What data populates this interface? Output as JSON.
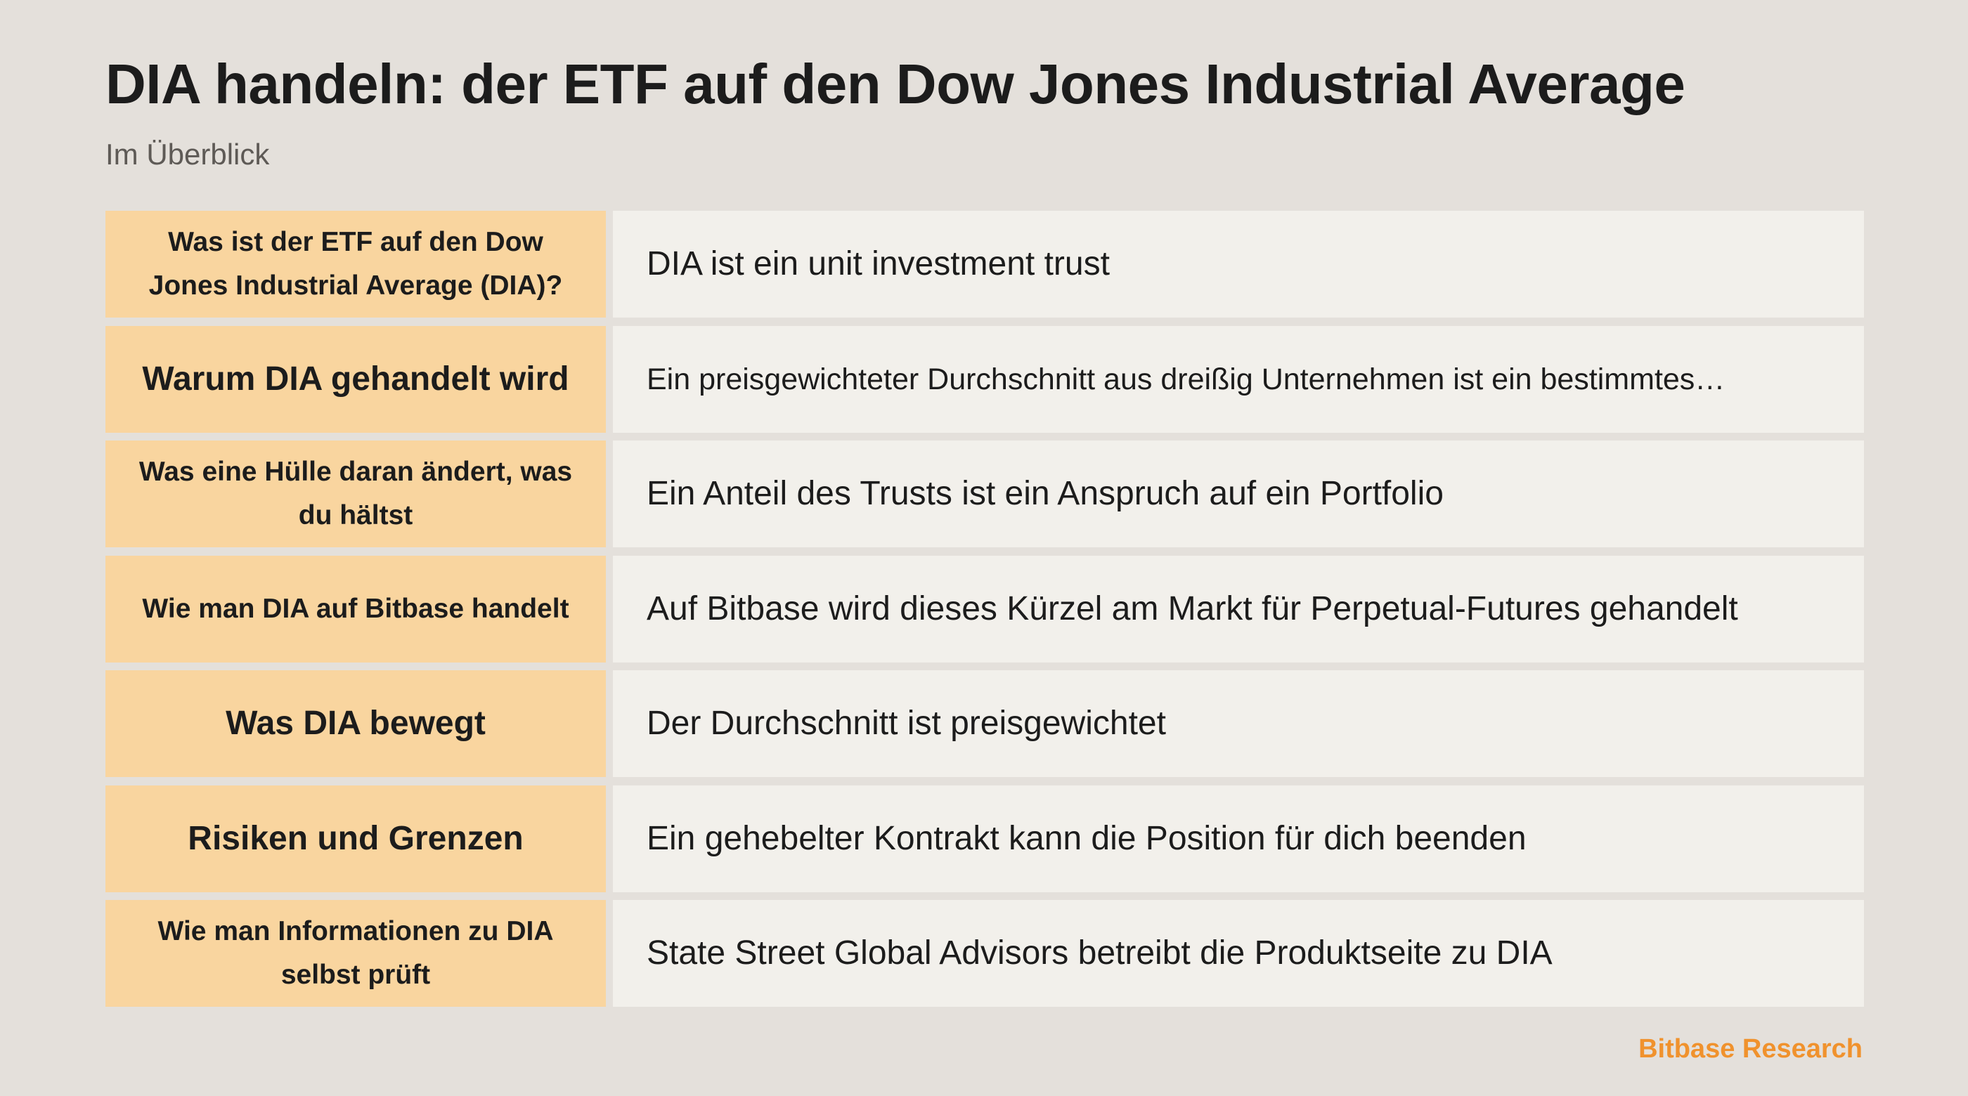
{
  "title": "DIA handeln: der ETF auf den Dow Jones Industrial Average",
  "subtitle": "Im Überblick",
  "rows": [
    {
      "label": "Was ist der ETF auf den Dow Jones Industrial Average (DIA)?",
      "value": "DIA ist ein unit investment trust"
    },
    {
      "label": "Warum DIA gehandelt wird",
      "value": "Ein preisgewichteter Durchschnitt aus dreißig Unternehmen ist ein bestimmtes…"
    },
    {
      "label": "Was eine Hülle daran ändert, was du hältst",
      "value": "Ein Anteil des Trusts ist ein Anspruch auf ein Portfolio"
    },
    {
      "label": "Wie man DIA auf Bitbase handelt",
      "value": "Auf Bitbase wird dieses Kürzel am Markt für Perpetual-Futures gehandelt"
    },
    {
      "label": "Was DIA bewegt",
      "value": "Der Durchschnitt ist preisgewichtet"
    },
    {
      "label": "Risiken und Grenzen",
      "value": "Ein gehebelter Kontrakt kann die Position für dich beenden"
    },
    {
      "label": "Wie man Informationen zu DIA selbst prüft",
      "value": "State Street Global Advisors betreibt die Produktseite zu DIA"
    }
  ],
  "brand": "Bitbase Research",
  "colors": {
    "background": "#e4e0db",
    "label_cell": "#f9d59f",
    "value_cell": "#f2f0eb",
    "brand": "#f0922d"
  }
}
